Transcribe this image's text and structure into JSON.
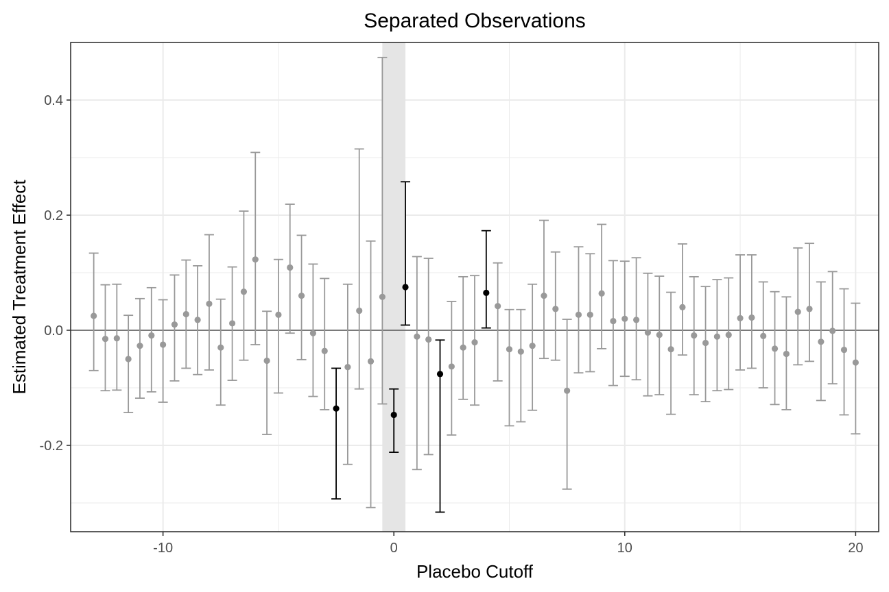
{
  "chart_data": {
    "type": "scatter",
    "title": "Separated Observations",
    "xlabel": "Placebo Cutoff",
    "ylabel": "Estimated Treatment Effect",
    "xlim": [
      -14,
      21
    ],
    "ylim": [
      -0.35,
      0.5
    ],
    "x_ticks": [
      -10,
      0,
      10,
      20
    ],
    "x_tick_labels": [
      "-10",
      "0",
      "10",
      "20"
    ],
    "y_ticks": [
      -0.2,
      0.0,
      0.2,
      0.4
    ],
    "y_tick_labels": [
      "-0.2",
      "0.0",
      "0.2",
      "0.4"
    ],
    "reference_line_y": 0,
    "shaded_band_x": [
      -0.5,
      0.5
    ],
    "grid": true,
    "colors": {
      "not_significant": "#999999",
      "significant": "#000000",
      "band": "#e5e5e5",
      "grid": "#ebebeb",
      "reference": "#555555"
    },
    "points": [
      {
        "x": -13.0,
        "y": 0.025,
        "lo": -0.07,
        "hi": 0.134,
        "sig": false
      },
      {
        "x": -12.5,
        "y": -0.015,
        "lo": -0.105,
        "hi": 0.079,
        "sig": false
      },
      {
        "x": -12.0,
        "y": -0.014,
        "lo": -0.104,
        "hi": 0.08,
        "sig": false
      },
      {
        "x": -11.5,
        "y": -0.05,
        "lo": -0.143,
        "hi": 0.026,
        "sig": false
      },
      {
        "x": -11.0,
        "y": -0.027,
        "lo": -0.118,
        "hi": 0.055,
        "sig": false
      },
      {
        "x": -10.5,
        "y": -0.009,
        "lo": -0.107,
        "hi": 0.074,
        "sig": false
      },
      {
        "x": -10.0,
        "y": -0.025,
        "lo": -0.125,
        "hi": 0.053,
        "sig": false
      },
      {
        "x": -9.5,
        "y": 0.01,
        "lo": -0.088,
        "hi": 0.096,
        "sig": false
      },
      {
        "x": -9.0,
        "y": 0.028,
        "lo": -0.066,
        "hi": 0.122,
        "sig": false
      },
      {
        "x": -8.5,
        "y": 0.018,
        "lo": -0.077,
        "hi": 0.112,
        "sig": false
      },
      {
        "x": -8.0,
        "y": 0.046,
        "lo": -0.069,
        "hi": 0.166,
        "sig": false
      },
      {
        "x": -7.5,
        "y": -0.03,
        "lo": -0.13,
        "hi": 0.054,
        "sig": false
      },
      {
        "x": -7.0,
        "y": 0.012,
        "lo": -0.087,
        "hi": 0.11,
        "sig": false
      },
      {
        "x": -6.5,
        "y": 0.067,
        "lo": -0.052,
        "hi": 0.207,
        "sig": false
      },
      {
        "x": -6.0,
        "y": 0.123,
        "lo": -0.025,
        "hi": 0.309,
        "sig": false
      },
      {
        "x": -5.5,
        "y": -0.053,
        "lo": -0.181,
        "hi": 0.033,
        "sig": false
      },
      {
        "x": -5.0,
        "y": 0.027,
        "lo": -0.109,
        "hi": 0.123,
        "sig": false
      },
      {
        "x": -4.5,
        "y": 0.109,
        "lo": -0.005,
        "hi": 0.219,
        "sig": false
      },
      {
        "x": -4.0,
        "y": 0.06,
        "lo": -0.051,
        "hi": 0.165,
        "sig": false
      },
      {
        "x": -3.5,
        "y": -0.005,
        "lo": -0.115,
        "hi": 0.115,
        "sig": false
      },
      {
        "x": -3.0,
        "y": -0.036,
        "lo": -0.138,
        "hi": 0.09,
        "sig": false
      },
      {
        "x": -2.5,
        "y": -0.136,
        "lo": -0.293,
        "hi": -0.066,
        "sig": true
      },
      {
        "x": -2.0,
        "y": -0.064,
        "lo": -0.233,
        "hi": 0.08,
        "sig": false
      },
      {
        "x": -1.5,
        "y": 0.034,
        "lo": -0.102,
        "hi": 0.315,
        "sig": false
      },
      {
        "x": -1.0,
        "y": -0.054,
        "lo": -0.308,
        "hi": 0.155,
        "sig": false
      },
      {
        "x": -0.5,
        "y": 0.058,
        "lo": -0.128,
        "hi": 0.474,
        "sig": false
      },
      {
        "x": 0.0,
        "y": -0.147,
        "lo": -0.212,
        "hi": -0.102,
        "sig": true
      },
      {
        "x": 0.5,
        "y": 0.075,
        "lo": 0.009,
        "hi": 0.258,
        "sig": true
      },
      {
        "x": 1.0,
        "y": -0.011,
        "lo": -0.242,
        "hi": 0.128,
        "sig": false
      },
      {
        "x": 1.5,
        "y": -0.016,
        "lo": -0.216,
        "hi": 0.125,
        "sig": false
      },
      {
        "x": 2.0,
        "y": -0.076,
        "lo": -0.316,
        "hi": -0.017,
        "sig": true
      },
      {
        "x": 2.5,
        "y": -0.063,
        "lo": -0.182,
        "hi": 0.05,
        "sig": false
      },
      {
        "x": 3.0,
        "y": -0.03,
        "lo": -0.12,
        "hi": 0.093,
        "sig": false
      },
      {
        "x": 3.5,
        "y": -0.021,
        "lo": -0.13,
        "hi": 0.095,
        "sig": false
      },
      {
        "x": 4.0,
        "y": 0.065,
        "lo": 0.004,
        "hi": 0.173,
        "sig": true
      },
      {
        "x": 4.5,
        "y": 0.042,
        "lo": -0.088,
        "hi": 0.117,
        "sig": false
      },
      {
        "x": 5.0,
        "y": -0.033,
        "lo": -0.166,
        "hi": 0.036,
        "sig": false
      },
      {
        "x": 5.5,
        "y": -0.037,
        "lo": -0.159,
        "hi": 0.036,
        "sig": false
      },
      {
        "x": 6.0,
        "y": -0.027,
        "lo": -0.139,
        "hi": 0.08,
        "sig": false
      },
      {
        "x": 6.5,
        "y": 0.06,
        "lo": -0.049,
        "hi": 0.191,
        "sig": false
      },
      {
        "x": 7.0,
        "y": 0.037,
        "lo": -0.052,
        "hi": 0.136,
        "sig": false
      },
      {
        "x": 7.5,
        "y": -0.105,
        "lo": -0.276,
        "hi": 0.019,
        "sig": false
      },
      {
        "x": 8.0,
        "y": 0.027,
        "lo": -0.074,
        "hi": 0.145,
        "sig": false
      },
      {
        "x": 8.5,
        "y": 0.027,
        "lo": -0.072,
        "hi": 0.133,
        "sig": false
      },
      {
        "x": 9.0,
        "y": 0.064,
        "lo": -0.032,
        "hi": 0.184,
        "sig": false
      },
      {
        "x": 9.5,
        "y": 0.016,
        "lo": -0.096,
        "hi": 0.121,
        "sig": false
      },
      {
        "x": 10.0,
        "y": 0.02,
        "lo": -0.08,
        "hi": 0.12,
        "sig": false
      },
      {
        "x": 10.5,
        "y": 0.018,
        "lo": -0.086,
        "hi": 0.126,
        "sig": false
      },
      {
        "x": 11.0,
        "y": -0.004,
        "lo": -0.114,
        "hi": 0.099,
        "sig": false
      },
      {
        "x": 11.5,
        "y": -0.008,
        "lo": -0.112,
        "hi": 0.094,
        "sig": false
      },
      {
        "x": 12.0,
        "y": -0.033,
        "lo": -0.146,
        "hi": 0.066,
        "sig": false
      },
      {
        "x": 12.5,
        "y": 0.04,
        "lo": -0.043,
        "hi": 0.15,
        "sig": false
      },
      {
        "x": 13.0,
        "y": -0.009,
        "lo": -0.112,
        "hi": 0.093,
        "sig": false
      },
      {
        "x": 13.5,
        "y": -0.022,
        "lo": -0.124,
        "hi": 0.076,
        "sig": false
      },
      {
        "x": 14.0,
        "y": -0.011,
        "lo": -0.105,
        "hi": 0.088,
        "sig": false
      },
      {
        "x": 14.5,
        "y": -0.008,
        "lo": -0.103,
        "hi": 0.091,
        "sig": false
      },
      {
        "x": 15.0,
        "y": 0.021,
        "lo": -0.069,
        "hi": 0.131,
        "sig": false
      },
      {
        "x": 15.5,
        "y": 0.022,
        "lo": -0.066,
        "hi": 0.131,
        "sig": false
      },
      {
        "x": 16.0,
        "y": -0.01,
        "lo": -0.1,
        "hi": 0.084,
        "sig": false
      },
      {
        "x": 16.5,
        "y": -0.032,
        "lo": -0.129,
        "hi": 0.067,
        "sig": false
      },
      {
        "x": 17.0,
        "y": -0.041,
        "lo": -0.138,
        "hi": 0.058,
        "sig": false
      },
      {
        "x": 17.5,
        "y": 0.032,
        "lo": -0.06,
        "hi": 0.143,
        "sig": false
      },
      {
        "x": 18.0,
        "y": 0.037,
        "lo": -0.054,
        "hi": 0.151,
        "sig": false
      },
      {
        "x": 18.5,
        "y": -0.02,
        "lo": -0.122,
        "hi": 0.084,
        "sig": false
      },
      {
        "x": 19.0,
        "y": -0.001,
        "lo": -0.093,
        "hi": 0.102,
        "sig": false
      },
      {
        "x": 19.5,
        "y": -0.034,
        "lo": -0.147,
        "hi": 0.072,
        "sig": false
      },
      {
        "x": 20.0,
        "y": -0.056,
        "lo": -0.18,
        "hi": 0.047,
        "sig": false
      }
    ]
  }
}
